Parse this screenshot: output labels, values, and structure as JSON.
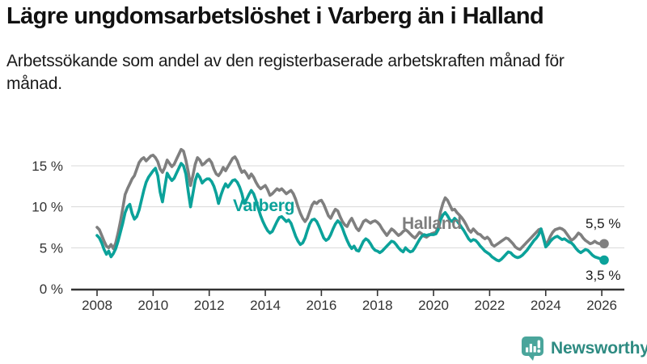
{
  "header": {
    "title": "Lägre ungdomsarbetslöshet i Varberg än i Halland",
    "subtitle": "Arbetssökande som andel av den registerbaserade arbetskraften månad för månad."
  },
  "footer": {
    "brand": "Newsworthy"
  },
  "colors": {
    "varberg": "#0ba29a",
    "halland": "#7f7f7f",
    "halland_label": "#7e7e7e",
    "brand_text": "#2e8b82",
    "brand_icon": "#4aa59b",
    "grid": "#d8d8d8",
    "axis": "#333333",
    "tick_label": "#333333",
    "end_label": "#1a1a1a",
    "background": "#ffffff"
  },
  "chart_data": {
    "type": "line",
    "title": "Lägre ungdomsarbetslöshet i Varberg än i Halland",
    "subtitle": "Arbetssökande som andel av den registerbaserade arbetskraften månad för månad.",
    "unit": "%",
    "frequency": "monthly",
    "grid": true,
    "legend_position": "inline-labels",
    "x_axis": {
      "start_year": 2008,
      "start_month": 1,
      "end_year": 2026,
      "end_month": 2,
      "ticks": [
        {
          "year": 2008,
          "label": "2008"
        },
        {
          "year": 2010,
          "label": "2010"
        },
        {
          "year": 2012,
          "label": "2012"
        },
        {
          "year": 2014,
          "label": "2014"
        },
        {
          "year": 2016,
          "label": "2016"
        },
        {
          "year": 2018,
          "label": "2018"
        },
        {
          "year": 2020,
          "label": "2020"
        },
        {
          "year": 2022,
          "label": "2022"
        },
        {
          "year": 2024,
          "label": "2024"
        },
        {
          "year": 2026,
          "label": "2026"
        }
      ]
    },
    "y_axis": {
      "ylim": [
        0,
        17.5
      ],
      "ticks": [
        {
          "value": 0,
          "label": "0 %"
        },
        {
          "value": 5,
          "label": "5 %"
        },
        {
          "value": 10,
          "label": "10 %"
        },
        {
          "value": 15,
          "label": "15 %"
        }
      ]
    },
    "series": [
      {
        "name": "Varberg",
        "color": "#0ba29a",
        "end_label": "3,5 %",
        "end_value": 3.5,
        "values": [
          6.5,
          6.2,
          5.6,
          4.8,
          4.2,
          4.6,
          3.9,
          4.3,
          4.9,
          5.8,
          6.9,
          8.0,
          9.3,
          10.0,
          10.3,
          9.2,
          8.5,
          8.8,
          9.6,
          10.8,
          12.0,
          13.0,
          13.6,
          14.0,
          14.4,
          14.7,
          13.8,
          11.8,
          10.6,
          12.4,
          14.1,
          13.6,
          13.2,
          13.5,
          14.1,
          14.7,
          15.3,
          15.0,
          14.0,
          11.9,
          10.0,
          11.6,
          13.2,
          14.0,
          13.6,
          12.9,
          13.2,
          13.4,
          13.4,
          13.1,
          12.5,
          11.6,
          10.4,
          11.4,
          12.2,
          12.8,
          12.4,
          12.8,
          13.2,
          13.3,
          13.0,
          12.4,
          11.6,
          10.4,
          10.9,
          11.5,
          12.0,
          11.6,
          10.8,
          9.8,
          8.9,
          8.2,
          7.6,
          7.1,
          6.8,
          7.0,
          7.6,
          8.2,
          8.7,
          8.8,
          8.5,
          8.2,
          8.4,
          8.0,
          7.2,
          6.4,
          5.8,
          5.4,
          5.6,
          6.2,
          7.1,
          7.9,
          8.4,
          8.5,
          8.2,
          7.6,
          6.9,
          6.2,
          5.9,
          6.1,
          6.6,
          7.3,
          7.9,
          8.3,
          8.0,
          7.4,
          6.6,
          5.9,
          5.3,
          4.9,
          5.2,
          4.7,
          4.6,
          5.2,
          5.8,
          6.1,
          5.9,
          5.5,
          5.0,
          4.7,
          4.6,
          4.4,
          4.6,
          4.9,
          5.2,
          5.5,
          5.8,
          5.7,
          5.4,
          5.0,
          4.7,
          4.5,
          5.0,
          4.7,
          4.5,
          4.6,
          5.0,
          5.5,
          6.0,
          6.4,
          6.6,
          6.5,
          6.6,
          6.6,
          6.6,
          6.7,
          7.2,
          8.4,
          9.0,
          9.3,
          8.9,
          8.4,
          8.2,
          8.6,
          8.3,
          7.9,
          7.5,
          7.1,
          6.6,
          6.1,
          5.8,
          6.0,
          5.9,
          5.6,
          5.2,
          4.9,
          4.6,
          4.4,
          4.2,
          3.9,
          3.7,
          3.5,
          3.4,
          3.6,
          3.9,
          4.2,
          4.5,
          4.4,
          4.1,
          3.9,
          3.8,
          3.9,
          4.1,
          4.4,
          4.7,
          5.1,
          5.5,
          5.9,
          6.2,
          6.6,
          7.3,
          6.2,
          5.1,
          5.4,
          5.8,
          6.1,
          6.3,
          6.4,
          6.2,
          6.0,
          6.1,
          5.9,
          5.7,
          5.6,
          5.3,
          4.9,
          4.6,
          4.4,
          4.6,
          4.8,
          4.7,
          4.4,
          4.1,
          3.9,
          3.8,
          3.7,
          3.6,
          3.5
        ]
      },
      {
        "name": "Halland",
        "color": "#7f7f7f",
        "end_label": "5,5 %",
        "end_value": 5.5,
        "values": [
          7.5,
          7.2,
          6.5,
          5.8,
          5.2,
          5.0,
          5.4,
          4.9,
          5.6,
          6.8,
          8.2,
          9.8,
          11.5,
          12.2,
          12.8,
          13.4,
          13.8,
          14.6,
          15.4,
          15.8,
          16.0,
          15.6,
          15.9,
          16.2,
          16.3,
          16.0,
          15.5,
          14.6,
          14.2,
          14.8,
          15.7,
          15.3,
          14.9,
          15.2,
          15.8,
          16.4,
          17.0,
          16.8,
          15.7,
          14.3,
          12.6,
          13.8,
          15.2,
          16.0,
          15.7,
          15.1,
          15.3,
          15.6,
          15.8,
          15.4,
          14.6,
          14.0,
          13.8,
          14.2,
          14.8,
          14.4,
          14.9,
          15.4,
          15.9,
          16.1,
          15.6,
          14.8,
          14.2,
          14.4,
          14.0,
          13.5,
          14.0,
          13.6,
          13.0,
          12.5,
          12.2,
          12.4,
          12.6,
          12.1,
          11.4,
          11.6,
          11.9,
          12.2,
          12.0,
          12.2,
          11.9,
          11.6,
          11.8,
          12.0,
          11.6,
          10.9,
          10.0,
          9.2,
          8.6,
          8.2,
          8.6,
          9.4,
          10.2,
          10.6,
          10.4,
          10.7,
          10.8,
          10.3,
          9.6,
          8.9,
          8.6,
          9.2,
          9.7,
          9.5,
          8.8,
          8.2,
          7.8,
          7.6,
          8.2,
          8.6,
          8.0,
          7.4,
          7.1,
          7.6,
          8.2,
          8.4,
          8.2,
          8.0,
          8.2,
          8.3,
          8.1,
          7.8,
          7.3,
          6.9,
          6.5,
          6.9,
          7.3,
          7.1,
          6.8,
          6.5,
          6.7,
          7.0,
          7.2,
          7.0,
          6.7,
          6.4,
          6.2,
          6.5,
          6.9,
          6.7,
          6.4,
          6.3,
          6.5,
          6.7,
          6.8,
          6.9,
          7.6,
          9.4,
          10.4,
          11.1,
          10.8,
          10.2,
          9.6,
          9.7,
          9.3,
          9.0,
          8.7,
          8.3,
          7.8,
          7.2,
          6.9,
          7.3,
          7.0,
          6.7,
          6.6,
          6.3,
          6.1,
          6.3,
          6.0,
          5.4,
          5.2,
          5.4,
          5.6,
          5.8,
          6.0,
          6.2,
          6.1,
          5.8,
          5.5,
          5.1,
          4.9,
          4.8,
          5.1,
          5.4,
          5.7,
          6.0,
          6.3,
          6.6,
          6.9,
          7.2,
          7.3,
          6.4,
          5.3,
          5.8,
          6.4,
          6.9,
          7.2,
          7.3,
          7.4,
          7.3,
          7.1,
          6.7,
          6.3,
          5.9,
          6.1,
          6.4,
          6.8,
          6.6,
          6.2,
          5.9,
          5.7,
          5.5,
          5.6,
          5.8,
          5.6,
          5.5,
          5.5,
          5.5
        ]
      }
    ]
  }
}
